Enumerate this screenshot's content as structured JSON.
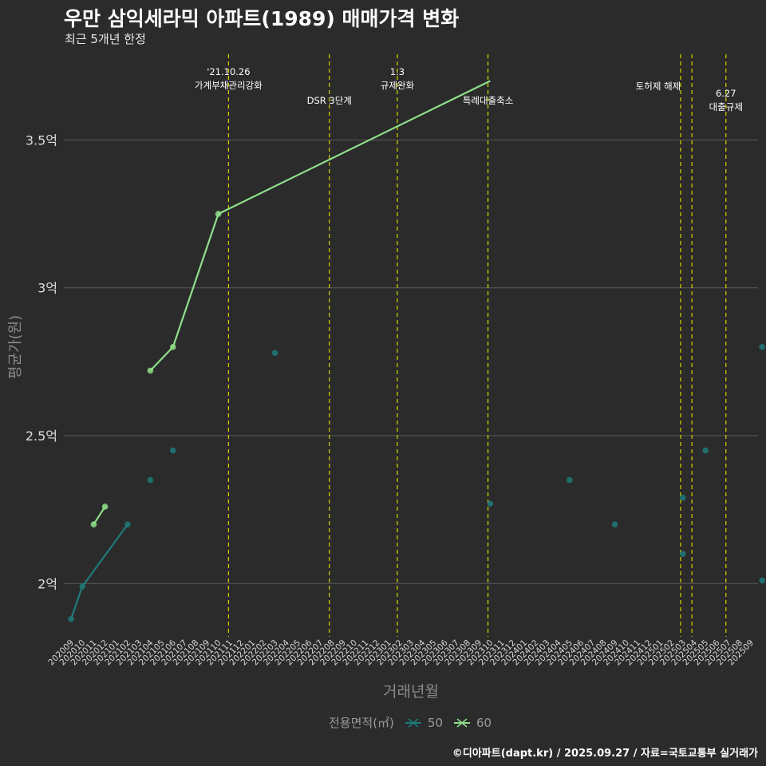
{
  "title": "우만 삼익세라믹 아파트(1989) 매매가격 변화",
  "subtitle": "최근 5개년 한정",
  "credit": "©디아파트(dapt.kr) / 2025.09.27 / 자료=국토교통부 실거래가",
  "colors": {
    "background": "#2b2b2b",
    "s50": "#1f7a7a",
    "s60": "#8fe08a",
    "event": "#c8c800",
    "grid": "#5a5a5a"
  },
  "chart_data": {
    "type": "line",
    "title": "우만 삼익세라믹 아파트(1989) 매매가격 변화",
    "xlabel": "거래년월",
    "ylabel": "평균가(원)",
    "categories": [
      "202009",
      "202010",
      "202011",
      "202012",
      "202101",
      "202102",
      "202103",
      "202104",
      "202105",
      "202106",
      "202107",
      "202108",
      "202109",
      "202110",
      "202111",
      "202112",
      "202201",
      "202202",
      "202203",
      "202204",
      "202205",
      "202206",
      "202207",
      "202208",
      "202209",
      "202210",
      "202211",
      "202212",
      "202301",
      "202302",
      "202303",
      "202304",
      "202305",
      "202306",
      "202307",
      "202308",
      "202309",
      "202310",
      "202311",
      "202312",
      "202401",
      "202402",
      "202403",
      "202404",
      "202405",
      "202406",
      "202407",
      "202408",
      "202409",
      "202410",
      "202411",
      "202412",
      "202501",
      "202502",
      "202503",
      "202504",
      "202505",
      "202506",
      "202507",
      "202508",
      "202509"
    ],
    "yticks": [
      2.0,
      2.5,
      3.0,
      3.5
    ],
    "ytick_labels": [
      "2억",
      "2.5억",
      "3억",
      "3.5억"
    ],
    "ylim": [
      1.82,
      3.79
    ],
    "legend_title": "전용면적(㎡)",
    "series": [
      {
        "name": "50",
        "color": "#1f7a7a",
        "lines": [
          [
            [
              "202009",
              1.88
            ],
            [
              "202010",
              1.99
            ],
            [
              "202102",
              2.2
            ]
          ]
        ],
        "points": [
          [
            "202009",
            1.88
          ],
          [
            "202010",
            1.99
          ],
          [
            "202102",
            2.2
          ],
          [
            "202104",
            2.35
          ],
          [
            "202106",
            2.45
          ],
          [
            "202203",
            2.78
          ],
          [
            "202310",
            2.27
          ],
          [
            "202405",
            2.35
          ],
          [
            "202409",
            2.2
          ],
          [
            "202503",
            2.29
          ],
          [
            "202503",
            2.1
          ],
          [
            "202505",
            2.45
          ],
          [
            "202510",
            2.8
          ],
          [
            "202510",
            2.01
          ]
        ]
      },
      {
        "name": "60",
        "color": "#8fe08a",
        "lines": [
          [
            [
              "202011",
              2.2
            ],
            [
              "202012",
              2.26
            ]
          ],
          [
            [
              "202104",
              2.72
            ],
            [
              "202106",
              2.8
            ],
            [
              "202110",
              3.25
            ],
            [
              "202310",
              3.7
            ]
          ]
        ],
        "points": [
          [
            "202011",
            2.2
          ],
          [
            "202012",
            2.26
          ],
          [
            "202104",
            2.72
          ],
          [
            "202106",
            2.8
          ],
          [
            "202110",
            3.25
          ]
        ]
      }
    ],
    "events": [
      {
        "x": "202110.9",
        "lines": [
          "'21.10.26",
          "가계부채관리강화"
        ],
        "row": 0
      },
      {
        "x": "202207.8",
        "lines": [
          "DSR 3단계"
        ],
        "row": 2
      },
      {
        "x": "202301.8",
        "lines": [
          "1.3",
          "규제완화"
        ],
        "row": 0
      },
      {
        "x": "202309.8",
        "lines": [
          "특례대출축소"
        ],
        "row": 2
      },
      {
        "x": "202502.8",
        "lines": [
          "토허제 해제"
        ],
        "row": 1,
        "anchor": "start-offset"
      },
      {
        "x": "202503.8",
        "lines": [],
        "row": 1
      },
      {
        "x": "202506.8",
        "lines": [
          "6.27",
          "대출규제"
        ],
        "row": 1.5
      }
    ]
  }
}
